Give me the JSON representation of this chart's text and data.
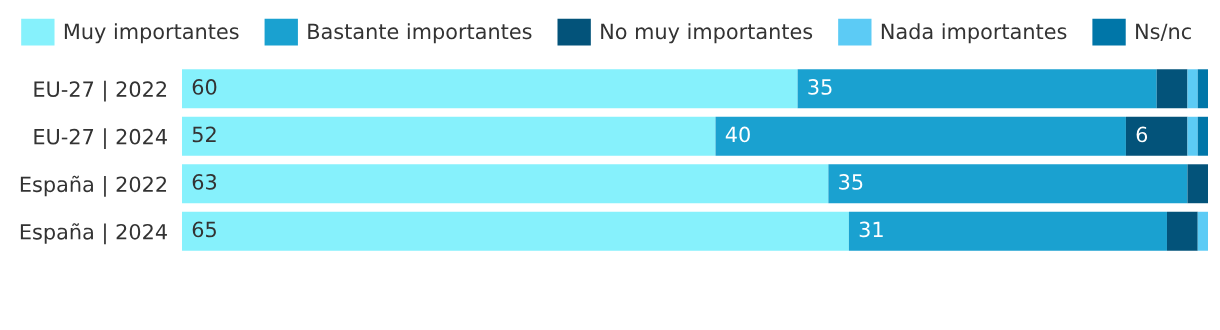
{
  "chart_data": {
    "type": "bar",
    "orientation": "horizontal",
    "stacked": true,
    "categories": [
      "EU-27 | 2022",
      "EU-27 | 2024",
      "España | 2022",
      "España | 2024"
    ],
    "series": [
      {
        "name": "Muy importantes",
        "color": "#86f1fc",
        "values": [
          60,
          52,
          63,
          65
        ],
        "value_labels": [
          "60",
          "52",
          "63",
          "65"
        ]
      },
      {
        "name": "Bastante importantes",
        "color": "#1aa1d0",
        "values": [
          35,
          40,
          35,
          31
        ],
        "value_labels": [
          "35",
          "40",
          "35",
          "31"
        ]
      },
      {
        "name": "No muy importantes",
        "color": "#03537a",
        "values": [
          3,
          6,
          2,
          3
        ],
        "value_labels": [
          null,
          "6",
          null,
          null
        ]
      },
      {
        "name": "Nada importantes",
        "color": "#5ccbf5",
        "values": [
          1,
          1,
          0,
          1
        ],
        "value_labels": [
          null,
          null,
          null,
          null
        ]
      },
      {
        "name": "Ns/nc",
        "color": "#0076a8",
        "values": [
          1,
          1,
          0,
          0
        ],
        "value_labels": [
          null,
          null,
          null,
          null
        ]
      }
    ],
    "legend": "top left",
    "tick_labels": "y",
    "grid": false
  }
}
